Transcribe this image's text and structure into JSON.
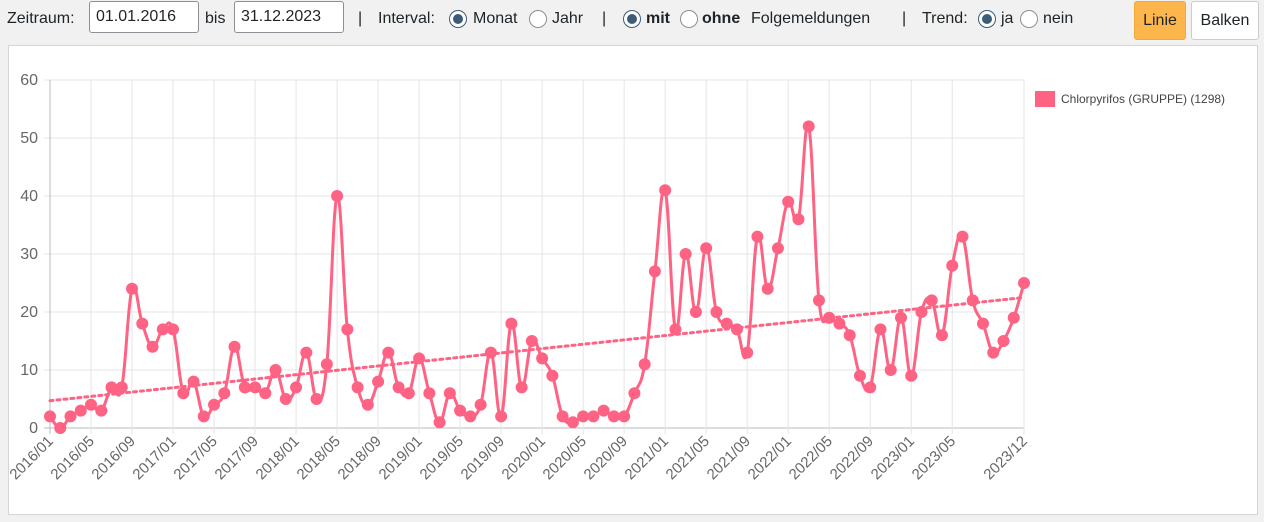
{
  "toolbar": {
    "zeitraum_label": "Zeitraum:",
    "date_from": "01.01.2016",
    "bis_label": "bis",
    "date_to": "31.12.2023",
    "sep1": "|",
    "interval_label": "Interval:",
    "interval_options": [
      {
        "label": "Monat",
        "checked": true
      },
      {
        "label": "Jahr",
        "checked": false
      }
    ],
    "sep2": "|",
    "folge_mit": "mit",
    "folge_ohne": "ohne",
    "folge_suffix": "Folgemeldungen",
    "folge_mit_checked": true,
    "sep3": "|",
    "trend_label": "Trend:",
    "trend_options": [
      {
        "label": "ja",
        "checked": true
      },
      {
        "label": "nein",
        "checked": false
      }
    ],
    "btn_linie": "Linie",
    "btn_balken": "Balken"
  },
  "chart_data": {
    "type": "line",
    "title": "",
    "xlabel": "",
    "ylabel": "",
    "ylim": [
      0,
      60
    ],
    "yticks": [
      "0",
      "10",
      "20",
      "30",
      "40",
      "50",
      "60"
    ],
    "grid": true,
    "legend_position": "right",
    "color": "#ff6384",
    "xtick_labels": [
      "2016/01",
      "2016/05",
      "2016/09",
      "2017/01",
      "2017/05",
      "2017/09",
      "2018/01",
      "2018/05",
      "2018/09",
      "2019/01",
      "2019/05",
      "2019/09",
      "2020/01",
      "2020/05",
      "2020/09",
      "2021/01",
      "2021/05",
      "2021/09",
      "2022/01",
      "2022/05",
      "2022/09",
      "2023/01",
      "2023/05",
      "2023/12"
    ],
    "series": [
      {
        "name": "Chlorpyrifos (GRUPPE) (1298)",
        "values": [
          2,
          0,
          2,
          3,
          4,
          3,
          7,
          7,
          24,
          18,
          14,
          17,
          17,
          6,
          8,
          2,
          4,
          6,
          14,
          7,
          7,
          6,
          10,
          5,
          7,
          13,
          5,
          11,
          40,
          17,
          7,
          4,
          8,
          13,
          7,
          6,
          12,
          6,
          1,
          6,
          3,
          2,
          4,
          13,
          2,
          18,
          7,
          15,
          12,
          9,
          2,
          1,
          2,
          2,
          3,
          2,
          2,
          6,
          11,
          27,
          41,
          17,
          30,
          20,
          31,
          20,
          18,
          17,
          13,
          33,
          24,
          31,
          39,
          36,
          52,
          22,
          19,
          18,
          16,
          9,
          7,
          17,
          10,
          19,
          9,
          20,
          22,
          16,
          28,
          33,
          22,
          18,
          13,
          15,
          19,
          25
        ]
      }
    ],
    "trend": {
      "start": 4.7,
      "end": 22.5
    }
  }
}
